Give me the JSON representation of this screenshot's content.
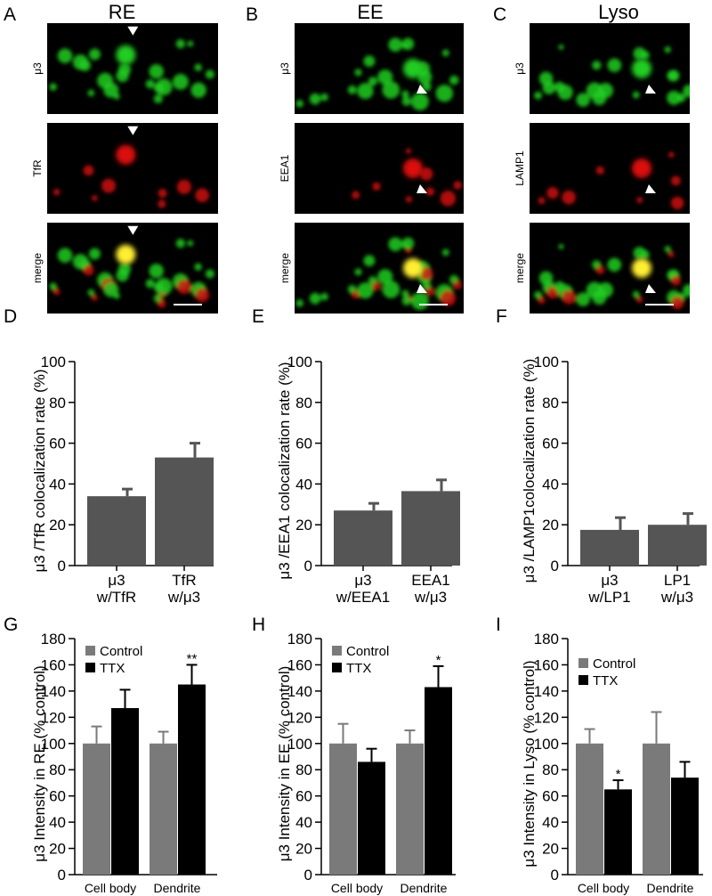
{
  "columns": [
    {
      "letter": "A",
      "title": "RE",
      "channels": [
        {
          "label": "μ3",
          "color": "green"
        },
        {
          "label": "TfR",
          "color": "red"
        },
        {
          "label": "merge",
          "color": "merge"
        }
      ]
    },
    {
      "letter": "B",
      "title": "EE",
      "channels": [
        {
          "label": "μ3",
          "color": "green"
        },
        {
          "label": "EEA1",
          "color": "red"
        },
        {
          "label": "merge",
          "color": "merge"
        }
      ]
    },
    {
      "letter": "C",
      "title": "Lyso",
      "channels": [
        {
          "label": "μ3",
          "color": "green"
        },
        {
          "label": "LAMP1",
          "color": "red"
        },
        {
          "label": "merge",
          "color": "merge"
        }
      ]
    }
  ],
  "colors": {
    "bar_dark": "#555555",
    "control": "#7a7a7a",
    "ttx": "#000000",
    "green": "#22cc22",
    "red": "#dd1111",
    "merge": "#ffee33"
  },
  "chart_data": [
    {
      "panel": "D",
      "type": "bar",
      "ylabel": "μ3 /TfR colocalization rate (%)",
      "ylim": [
        0,
        100
      ],
      "yticks": [
        0,
        20,
        40,
        60,
        80,
        100
      ],
      "categories": [
        [
          "μ3",
          "w/TfR"
        ],
        [
          "TfR",
          "w/μ3"
        ]
      ],
      "values": [
        34,
        53
      ],
      "errors": [
        3.5,
        7
      ]
    },
    {
      "panel": "E",
      "type": "bar",
      "ylabel": "μ3 /EEA1 colocalization rate (%)",
      "ylim": [
        0,
        100
      ],
      "yticks": [
        0,
        20,
        40,
        60,
        80,
        100
      ],
      "categories": [
        [
          "μ3",
          "w/EEA1"
        ],
        [
          "EEA1",
          "w/μ3"
        ]
      ],
      "values": [
        27,
        36.5
      ],
      "errors": [
        3.5,
        5.5
      ]
    },
    {
      "panel": "F",
      "type": "bar",
      "ylabel": "μ3 /LAMP1colocalization rate (%)",
      "ylim": [
        0,
        100
      ],
      "yticks": [
        0,
        20,
        40,
        60,
        80,
        100
      ],
      "categories": [
        [
          "μ3",
          "w/LP1"
        ],
        [
          "LP1",
          "w/μ3"
        ]
      ],
      "values": [
        17.5,
        20
      ],
      "errors": [
        6,
        5.5
      ]
    },
    {
      "panel": "G",
      "type": "bar",
      "ylabel": "μ3 Intensity in RE (% control)",
      "ylim": [
        0,
        180
      ],
      "yticks": [
        0,
        20,
        40,
        60,
        80,
        100,
        120,
        140,
        160,
        180
      ],
      "categories": [
        "Cell body",
        "Dendrite"
      ],
      "legend": [
        "Control",
        "TTX"
      ],
      "series": [
        {
          "name": "Control",
          "values": [
            100,
            100
          ],
          "errors": [
            13,
            9
          ]
        },
        {
          "name": "TTX",
          "values": [
            127,
            145
          ],
          "errors": [
            14,
            15
          ]
        }
      ],
      "annotations": [
        {
          "category": 1,
          "series": 1,
          "text": "**"
        }
      ]
    },
    {
      "panel": "H",
      "type": "bar",
      "ylabel": "μ3 Intensity in EE (% control)",
      "ylim": [
        0,
        180
      ],
      "yticks": [
        0,
        20,
        40,
        60,
        80,
        100,
        120,
        140,
        160,
        180
      ],
      "categories": [
        "Cell body",
        "Dendrite"
      ],
      "legend": [
        "Control",
        "TTX"
      ],
      "series": [
        {
          "name": "Control",
          "values": [
            100,
            100
          ],
          "errors": [
            15,
            10
          ]
        },
        {
          "name": "TTX",
          "values": [
            86,
            143
          ],
          "errors": [
            10,
            16
          ]
        }
      ],
      "annotations": [
        {
          "category": 1,
          "series": 1,
          "text": "*"
        }
      ]
    },
    {
      "panel": "I",
      "type": "bar",
      "ylabel": "μ3 Intensity in Lyso (% control)",
      "ylim": [
        0,
        180
      ],
      "yticks": [
        0,
        20,
        40,
        60,
        80,
        100,
        120,
        140,
        160,
        180
      ],
      "categories": [
        "Cell body",
        "Dendrite"
      ],
      "legend": [
        "Control",
        "TTX"
      ],
      "series": [
        {
          "name": "Control",
          "values": [
            100,
            100
          ],
          "errors": [
            11,
            24
          ]
        },
        {
          "name": "TTX",
          "values": [
            65,
            74
          ],
          "errors": [
            7,
            12
          ]
        }
      ],
      "annotations": [
        {
          "category": 0,
          "series": 1,
          "text": "*"
        }
      ]
    }
  ]
}
